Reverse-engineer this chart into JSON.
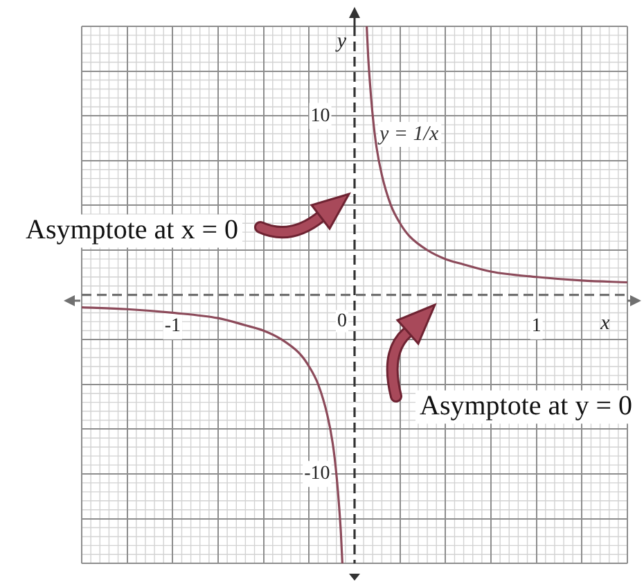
{
  "chart_data": {
    "type": "line",
    "xlabel": "x",
    "ylabel": "y",
    "xlim": [
      -1.5,
      1.5
    ],
    "ylim": [
      -15,
      15
    ],
    "xticks": [
      {
        "value": -1.5,
        "label": null
      },
      {
        "value": -1.25,
        "label": null
      },
      -1,
      {
        "value": -0.75,
        "label": null
      },
      {
        "value": -0.5,
        "label": null
      },
      {
        "value": -0.25,
        "label": null
      },
      {
        "value": 0.25,
        "label": null
      },
      {
        "value": 0.5,
        "label": null
      },
      {
        "value": 0.75,
        "label": null
      },
      1,
      {
        "value": 1.25,
        "label": null
      },
      {
        "value": 1.5,
        "label": null
      }
    ],
    "yticks": [
      {
        "value": -15,
        "label": null
      },
      {
        "value": -12.5,
        "label": null
      },
      -10,
      {
        "value": -7.5,
        "label": null
      },
      {
        "value": -5,
        "label": null
      },
      {
        "value": -2.5,
        "label": null
      },
      {
        "value": 2.5,
        "label": null
      },
      {
        "value": 5,
        "label": null
      },
      {
        "value": 7.5,
        "label": null
      },
      10,
      {
        "value": 12.5,
        "label": null
      },
      {
        "value": 15,
        "label": null
      }
    ],
    "grid": true,
    "marker": "none",
    "line_style": "solid",
    "series": [
      {
        "name": "y = 1/x",
        "color": "#8c4a5a",
        "x": [
          -1.5,
          -1.25,
          -1,
          -0.75,
          -0.6,
          -0.5,
          -0.4,
          -0.3,
          -0.25,
          -0.2,
          -0.15,
          -0.12,
          -0.1,
          -0.085,
          -0.075,
          -0.067,
          0,
          0.067,
          0.075,
          0.085,
          0.1,
          0.12,
          0.15,
          0.2,
          0.25,
          0.3,
          0.4,
          0.5,
          0.6,
          0.75,
          1,
          1.25,
          1.5
        ],
        "values": [
          -0.7,
          -0.8,
          -1,
          -1.3,
          -1.7,
          -2,
          -2.5,
          -3.3,
          -4,
          -5,
          -6.7,
          -8.3,
          -10,
          -11.8,
          -13.3,
          -15,
          null,
          15,
          13.3,
          11.8,
          10,
          8.3,
          6.7,
          5,
          4,
          3.3,
          2.5,
          2,
          1.7,
          1.3,
          1,
          0.8,
          0.7
        ]
      }
    ],
    "ref_lines": [
      {
        "axis": "x",
        "value": 0,
        "line_style": "dashed",
        "color": "#333333"
      },
      {
        "axis": "y",
        "value": 0,
        "line_style": "dashed",
        "color": "#707070"
      }
    ],
    "annotations": [
      "Asymptote at x = 0",
      {
        "text": "0",
        "x": 0,
        "y": 0
      },
      "Asymptote at y = 0"
    ]
  }
}
